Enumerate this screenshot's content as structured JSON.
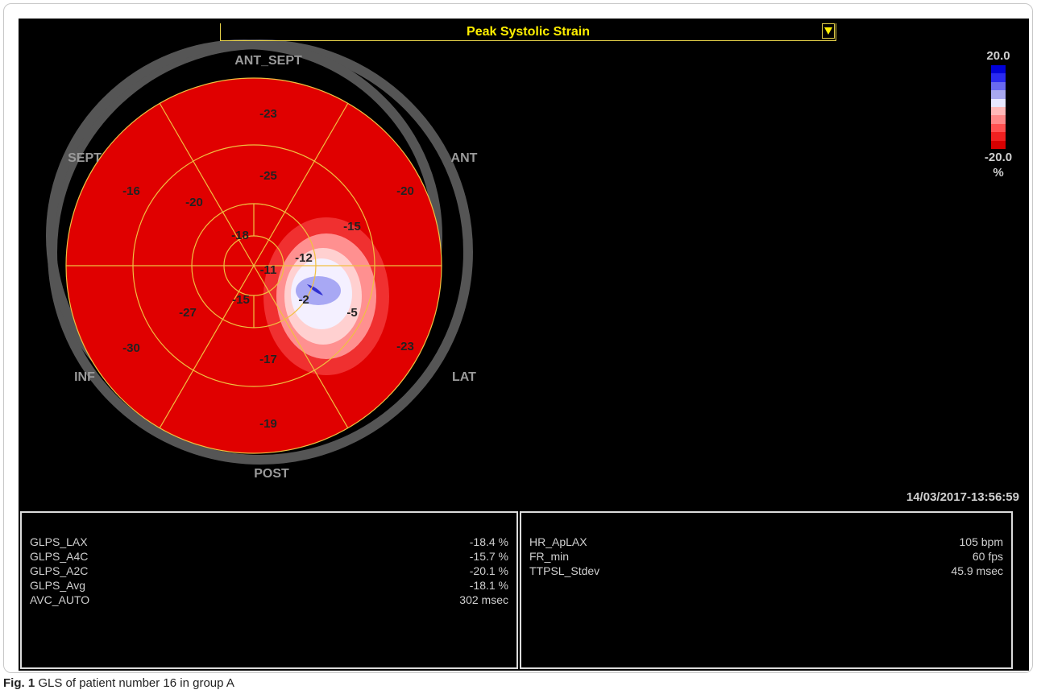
{
  "header": {
    "title": "Peak Systolic Strain",
    "dropdown_icon": "triangle-down-icon"
  },
  "scale": {
    "max": "20.0",
    "min": "-20.0",
    "unit": "%",
    "colors": [
      "#0000d8",
      "#2a2af0",
      "#6a6af0",
      "#a8a8f0",
      "#e8e8ff",
      "#ffb8b8",
      "#ff8888",
      "#ff5050",
      "#f02020",
      "#d80000"
    ]
  },
  "bullseye": {
    "directions": {
      "ant_sept": "ANT_SEPT",
      "ant": "ANT",
      "lat": "LAT",
      "post": "POST",
      "inf": "INF",
      "sept": "SEPT"
    },
    "basal": [
      "-23",
      "-20",
      "-23",
      "-19",
      "-30",
      "-16"
    ],
    "mid": [
      "-25",
      "-15",
      "-5",
      "-17",
      "-27",
      "-20"
    ],
    "apical": [
      "-12",
      "-2",
      "-15",
      "-18"
    ],
    "apex": "-11"
  },
  "timestamp": "14/03/2017-13:56:59",
  "left_panel": [
    {
      "label": "GLPS_LAX",
      "value": "-18.4 %"
    },
    {
      "label": "GLPS_A4C",
      "value": "-15.7 %"
    },
    {
      "label": "GLPS_A2C",
      "value": "-20.1 %"
    },
    {
      "label": "GLPS_Avg",
      "value": "-18.1 %"
    },
    {
      "label": "AVC_AUTO",
      "value": "302 msec"
    }
  ],
  "right_panel": [
    {
      "label": "HR_ApLAX",
      "value": "105 bpm"
    },
    {
      "label": "FR_min",
      "value": "60 fps"
    },
    {
      "label": "TTPSL_Stdev",
      "value": "45.9 msec"
    }
  ],
  "caption": {
    "prefix": "Fig. 1",
    "text": "GLS of patient number 16 in group A"
  }
}
